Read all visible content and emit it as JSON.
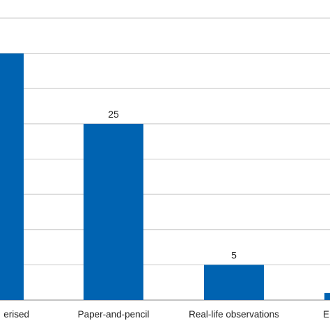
{
  "chart_data": {
    "type": "bar",
    "title": "",
    "xlabel": "",
    "ylabel": "",
    "categories": [
      "erised",
      "Paper-and-pencil",
      "Real-life observations",
      "E"
    ],
    "values": [
      35,
      25,
      5,
      1
    ],
    "data_labels": [
      "",
      "25",
      "5",
      ""
    ],
    "ylim": [
      0,
      40
    ],
    "grid": true,
    "bar_color": "#0063b1",
    "grid_color": "#c8c8c8"
  }
}
